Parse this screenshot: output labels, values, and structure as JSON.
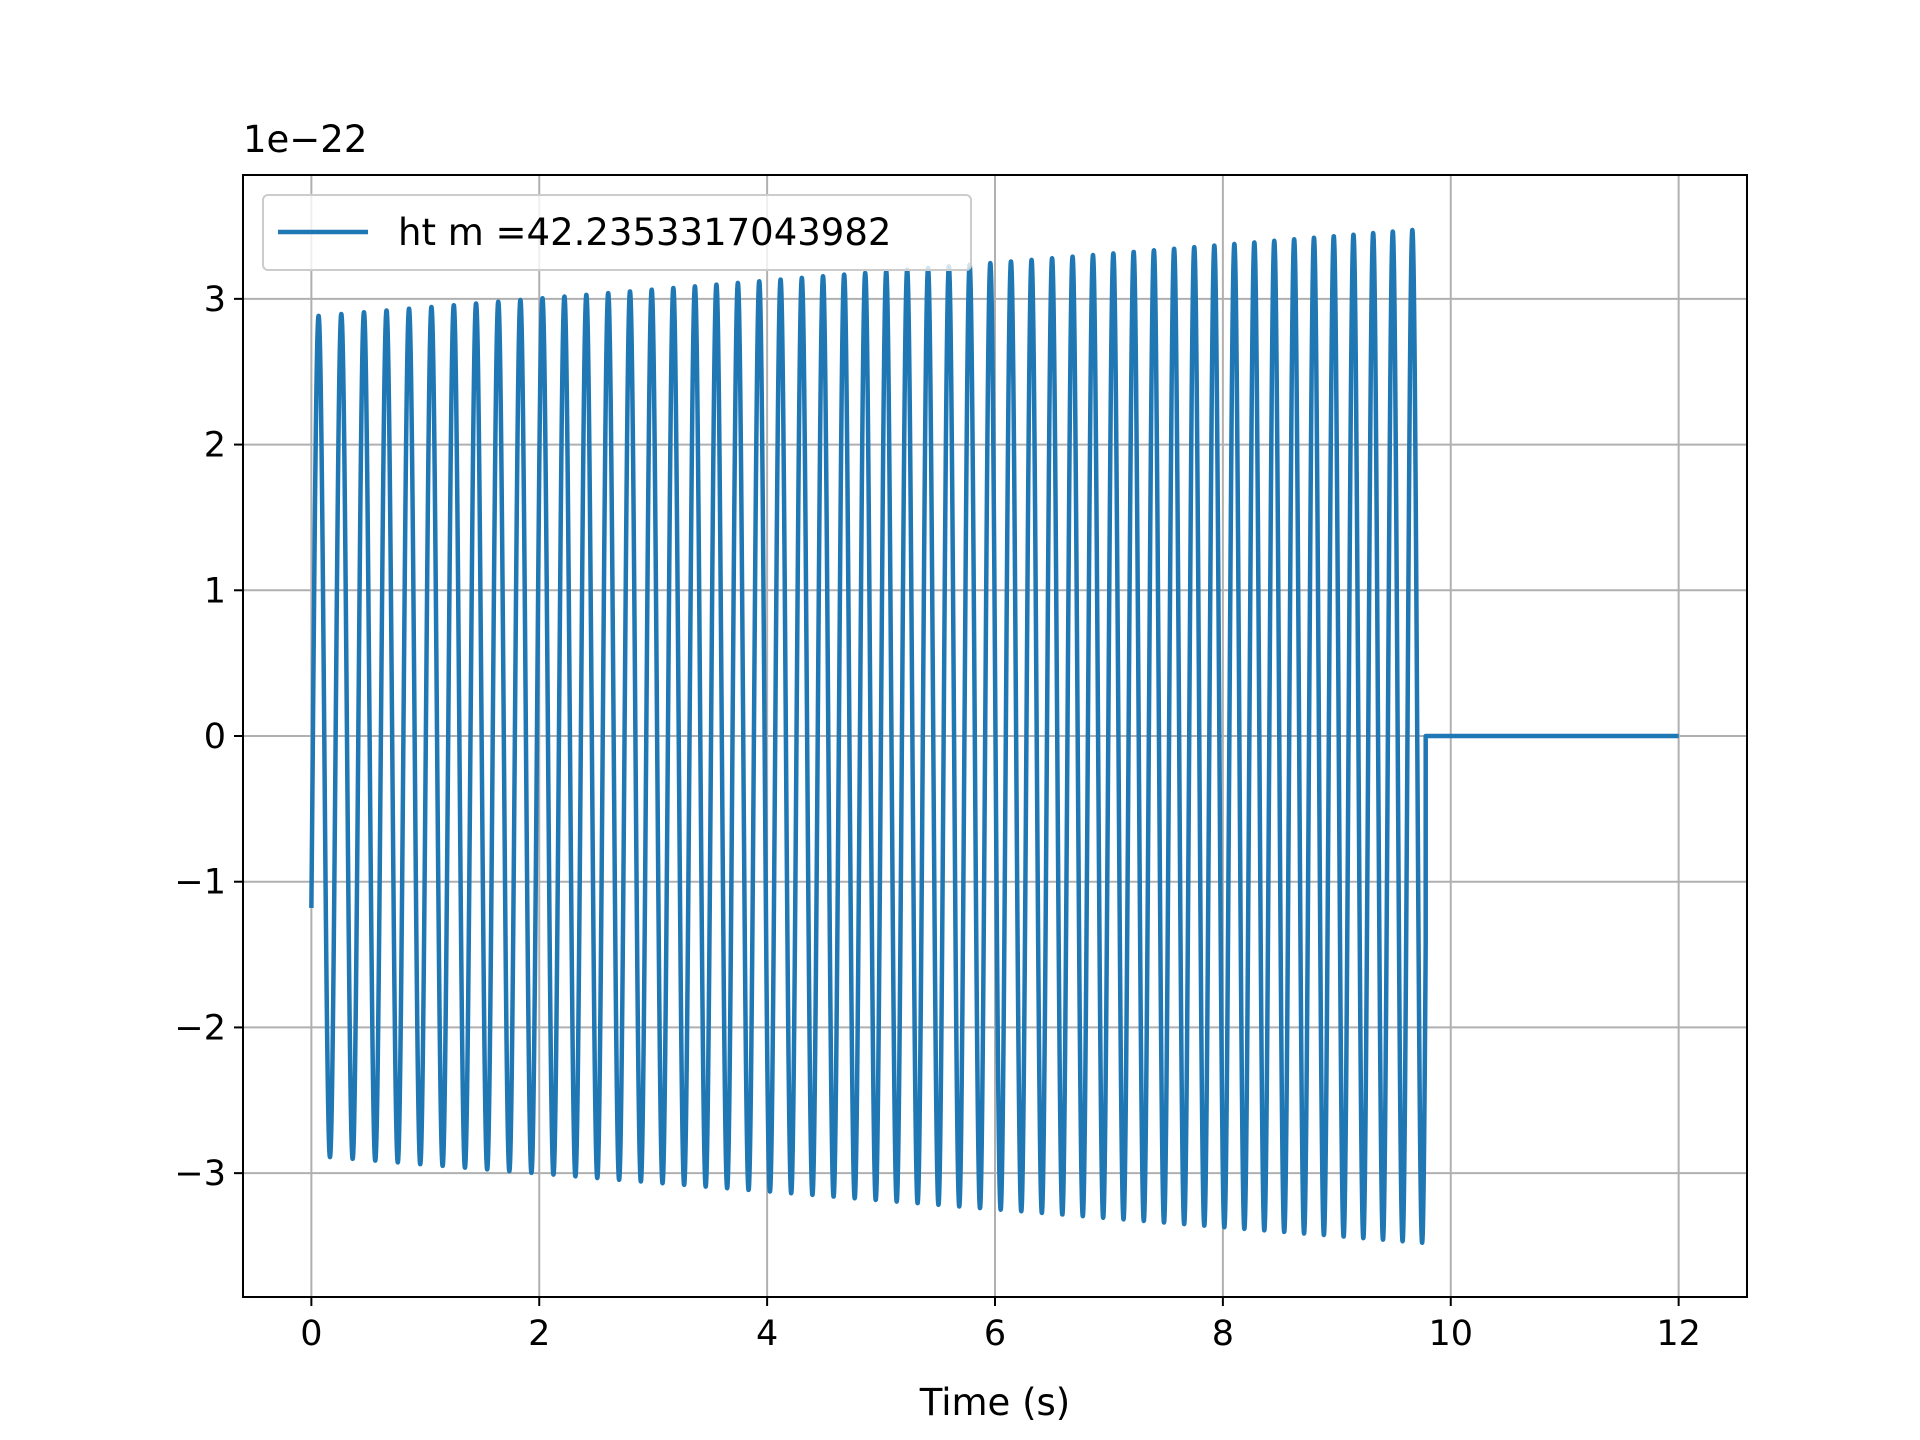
{
  "chart_data": {
    "type": "line",
    "title": "",
    "xlabel": "Time (s)",
    "ylabel": "",
    "y_offset_label": "1e−22",
    "xlim": [
      -0.6,
      12.6
    ],
    "ylim": [
      -3.85,
      3.85
    ],
    "x_ticks": [
      0,
      2,
      4,
      6,
      8,
      10,
      12
    ],
    "x_tick_labels": [
      "0",
      "2",
      "4",
      "6",
      "8",
      "10",
      "12"
    ],
    "y_ticks": [
      -3,
      -2,
      -1,
      0,
      1,
      2,
      3
    ],
    "y_tick_labels": [
      "−3",
      "−2",
      "−1",
      "0",
      "1",
      "2",
      "3"
    ],
    "grid": true,
    "legend_position": "upper-left",
    "colors": {
      "series": "#1f77b4",
      "grid": "#b0b0b0",
      "axes": "#000000"
    },
    "series": [
      {
        "name": "ht m =42.2353317043982",
        "signal_model": {
          "kind": "chirp",
          "start_time": 0,
          "end_time": 9.78,
          "initial_value": -1.18,
          "amplitude_start": 2.88,
          "amplitude_end": 3.48,
          "cycles": 53,
          "frequency_start": 5.0,
          "frequency_end": 5.85,
          "flat_after_value": 0,
          "flat_until": 12
        },
        "envelope": [
          {
            "x": 0.0,
            "max": 2.88,
            "min": -2.95
          },
          {
            "x": 2.0,
            "max": 2.97,
            "min": -2.94
          },
          {
            "x": 4.0,
            "max": 3.05,
            "min": -3.05
          },
          {
            "x": 6.0,
            "max": 3.18,
            "min": -3.15
          },
          {
            "x": 8.0,
            "max": 3.32,
            "min": -3.32
          },
          {
            "x": 9.7,
            "max": 3.48,
            "min": -3.48
          }
        ]
      }
    ]
  }
}
